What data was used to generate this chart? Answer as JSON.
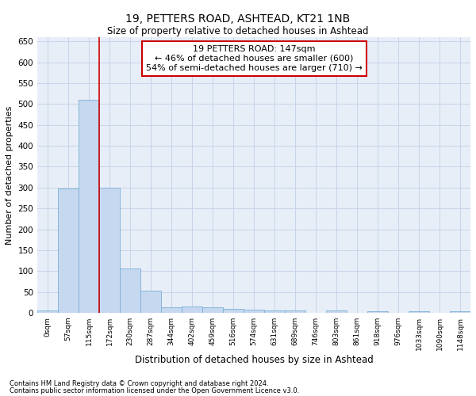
{
  "title1": "19, PETTERS ROAD, ASHTEAD, KT21 1NB",
  "title2": "Size of property relative to detached houses in Ashtead",
  "xlabel": "Distribution of detached houses by size in Ashtead",
  "ylabel": "Number of detached properties",
  "footnote1": "Contains HM Land Registry data © Crown copyright and database right 2024.",
  "footnote2": "Contains public sector information licensed under the Open Government Licence v3.0.",
  "bin_labels": [
    "0sqm",
    "57sqm",
    "115sqm",
    "172sqm",
    "230sqm",
    "287sqm",
    "344sqm",
    "402sqm",
    "459sqm",
    "516sqm",
    "574sqm",
    "631sqm",
    "689sqm",
    "746sqm",
    "803sqm",
    "861sqm",
    "918sqm",
    "976sqm",
    "1033sqm",
    "1090sqm",
    "1148sqm"
  ],
  "bar_heights": [
    5,
    298,
    511,
    300,
    107,
    53,
    14,
    15,
    13,
    9,
    7,
    5,
    5,
    0,
    5,
    0,
    4,
    0,
    4,
    0,
    4
  ],
  "bar_color": "#c5d8f0",
  "bar_edge_color": "#7bafd4",
  "grid_color": "#c8d4e8",
  "background_color": "#e8eef8",
  "annotation_text": "19 PETTERS ROAD: 147sqm\n← 46% of detached houses are smaller (600)\n54% of semi-detached houses are larger (710) →",
  "annotation_box_color": "#ffffff",
  "annotation_box_edge_color": "#cc0000",
  "vline_color": "#cc0000",
  "vline_x_index": 2.5,
  "ylim": [
    0,
    660
  ],
  "yticks": [
    0,
    50,
    100,
    150,
    200,
    250,
    300,
    350,
    400,
    450,
    500,
    550,
    600,
    650
  ]
}
